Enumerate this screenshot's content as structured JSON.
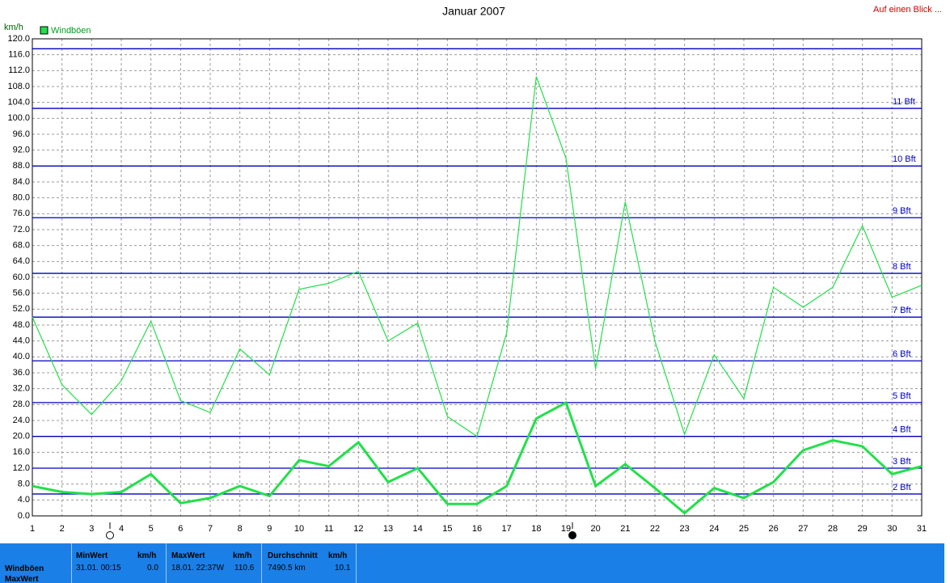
{
  "chart_data": {
    "type": "line",
    "title": "Januar 2007",
    "y_label": "km/h",
    "link": "Auf einen Blick ...",
    "x": [
      1,
      2,
      3,
      4,
      5,
      6,
      7,
      8,
      9,
      10,
      11,
      12,
      13,
      14,
      15,
      16,
      17,
      18,
      19,
      20,
      21,
      22,
      23,
      24,
      25,
      26,
      27,
      28,
      29,
      30,
      31
    ],
    "xlim": [
      1,
      31
    ],
    "xticks": [
      1,
      2,
      3,
      4,
      5,
      6,
      7,
      8,
      9,
      10,
      11,
      12,
      13,
      14,
      15,
      16,
      17,
      18,
      19,
      20,
      21,
      22,
      23,
      24,
      25,
      26,
      27,
      28,
      29,
      30,
      31
    ],
    "ylim": [
      0,
      120
    ],
    "yticks": [
      {
        "value": 0,
        "label": "0.0"
      },
      {
        "value": 4,
        "label": "4.0"
      },
      {
        "value": 8,
        "label": "8.0"
      },
      {
        "value": 12,
        "label": "12.0"
      },
      {
        "value": 16,
        "label": "16.0"
      },
      {
        "value": 20,
        "label": "20.0"
      },
      {
        "value": 24,
        "label": "24.0"
      },
      {
        "value": 28,
        "label": "28.0"
      },
      {
        "value": 32,
        "label": "32.0"
      },
      {
        "value": 36,
        "label": "36.0"
      },
      {
        "value": 40,
        "label": "40.0"
      },
      {
        "value": 44,
        "label": "44.0"
      },
      {
        "value": 48,
        "label": "48.0"
      },
      {
        "value": 52,
        "label": "52.0"
      },
      {
        "value": 56,
        "label": "56.0"
      },
      {
        "value": 60,
        "label": "60.0"
      },
      {
        "value": 64,
        "label": "64.0"
      },
      {
        "value": 68,
        "label": "68.0"
      },
      {
        "value": 72,
        "label": "72.0"
      },
      {
        "value": 76,
        "label": "76.0"
      },
      {
        "value": 80,
        "label": "80.0"
      },
      {
        "value": 84,
        "label": "84.0"
      },
      {
        "value": 88,
        "label": "88.0"
      },
      {
        "value": 92,
        "label": "92.0"
      },
      {
        "value": 96,
        "label": "96.0"
      },
      {
        "value": 100,
        "label": "100.0"
      },
      {
        "value": 104,
        "label": "104.0"
      },
      {
        "value": 108,
        "label": "108.0"
      },
      {
        "value": 112,
        "label": "112.0"
      },
      {
        "value": 116,
        "label": "116.0"
      },
      {
        "value": 120,
        "label": "120.0"
      }
    ],
    "grid": true,
    "reference_lines": [
      {
        "value": 5.5,
        "label": "2 Bft"
      },
      {
        "value": 12,
        "label": "3 Bft"
      },
      {
        "value": 20,
        "label": "4 Bft"
      },
      {
        "value": 28.5,
        "label": "5 Bft"
      },
      {
        "value": 39,
        "label": "6 Bft"
      },
      {
        "value": 50,
        "label": "7 Bft"
      },
      {
        "value": 61,
        "label": "8 Bft"
      },
      {
        "value": 75,
        "label": "9 Bft"
      },
      {
        "value": 88,
        "label": "10 Bft"
      },
      {
        "value": 102.5,
        "label": "11 Bft"
      },
      {
        "value": 117.5,
        "label": null
      }
    ],
    "reference_color": "#0000c0",
    "series": [
      {
        "name": "Windböen",
        "color": "#22e04a",
        "values": [
          50,
          33,
          25.5,
          34,
          49,
          29,
          26,
          42,
          35.5,
          57,
          58.5,
          61.5,
          44,
          48.5,
          25,
          20,
          46,
          110.5,
          90,
          37,
          79,
          44,
          20.5,
          40.5,
          29.5,
          57.5,
          52.5,
          57.5,
          73,
          55,
          58
        ]
      },
      {
        "color": "#22e04a",
        "values": [
          7.5,
          6,
          5.5,
          6,
          10.5,
          3.2,
          4.5,
          7.5,
          5,
          14,
          12.5,
          18.5,
          8.5,
          12,
          3,
          3,
          7.5,
          24.5,
          28.5,
          7.5,
          13,
          7,
          0.7,
          7,
          4.5,
          8.5,
          16.5,
          19,
          17.5,
          10.5,
          12.5
        ]
      }
    ]
  },
  "panel": {
    "rows": [
      "Windböen",
      "MaxWert"
    ],
    "columns": [
      {
        "header": "MinWert",
        "unit": "km/h",
        "time": "31.01.  00:15",
        "value": "0.0"
      },
      {
        "header": "MaxWert",
        "unit": "km/h",
        "time": "18.01.  22:37W",
        "value": "110.6"
      },
      {
        "header": "Durchschnitt",
        "unit": "km/h",
        "time": "7490.5 km",
        "value": "10.1"
      }
    ]
  }
}
